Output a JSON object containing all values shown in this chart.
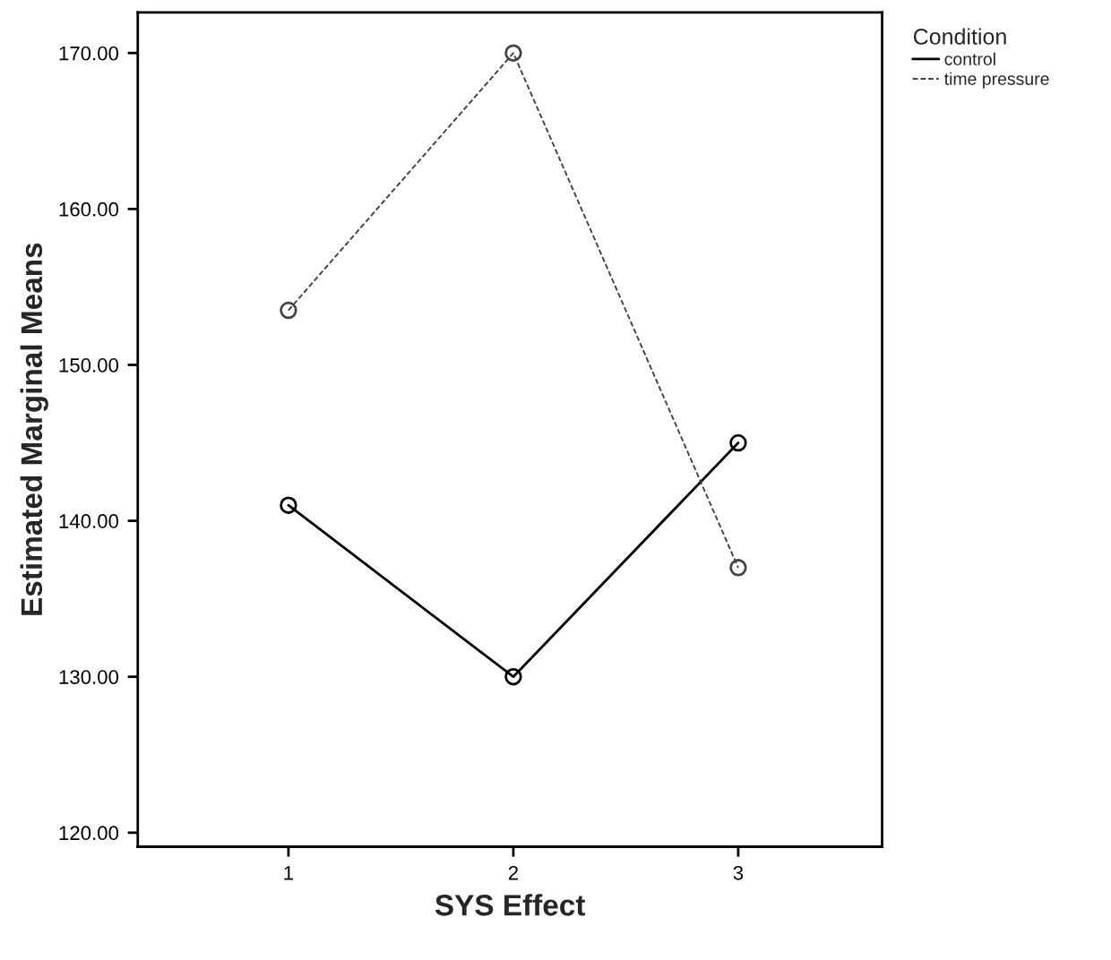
{
  "chart_data": {
    "type": "line",
    "xlabel": "SYS Effect",
    "ylabel": "Estimated Marginal Means",
    "legend_title": "Condition",
    "x": [
      1,
      2,
      3
    ],
    "series": [
      {
        "name": "control",
        "color": "#000000",
        "values": [
          141,
          130,
          145
        ],
        "line_style": "solid"
      },
      {
        "name": "time pressure",
        "color": "#444444",
        "values": [
          153.5,
          170,
          137
        ],
        "line_style": "dashed"
      }
    ],
    "xlim": [
      0.33,
      3.64
    ],
    "xticks": [
      1,
      2,
      3
    ],
    "ylim": [
      119.1,
      172.6
    ],
    "yticks": [
      {
        "value": 120,
        "label": "120.00"
      },
      {
        "value": 130,
        "label": "130.00"
      },
      {
        "value": 140,
        "label": "140.00"
      },
      {
        "value": 150,
        "label": "150.00"
      },
      {
        "value": 160,
        "label": "160.00"
      },
      {
        "value": 170,
        "label": "170.00"
      }
    ],
    "marker": "circle",
    "legend": "top right",
    "grid": false
  }
}
